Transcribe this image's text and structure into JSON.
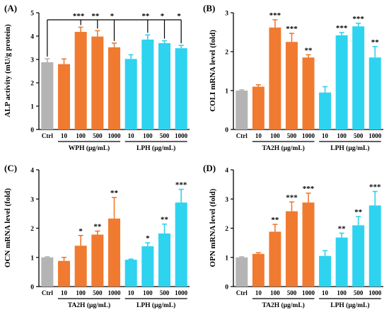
{
  "colors": {
    "ctrl": "#b4b4b4",
    "orange": "#f07a30",
    "cyan": "#2ed3f0",
    "black": "#000000"
  },
  "chart_data": [
    {
      "type": "bar",
      "panel": "(A)",
      "ylabel": "ALP activity (mU/g protein)",
      "ylim": [
        0,
        5
      ],
      "yticks": [
        0,
        1,
        2,
        3,
        4,
        5
      ],
      "categories": [
        "Ctrl",
        "10",
        "100",
        "500",
        "1000",
        "10",
        "100",
        "500",
        "1000"
      ],
      "values": [
        2.88,
        2.8,
        4.18,
        3.98,
        3.52,
        3.02,
        3.85,
        3.7,
        3.48
      ],
      "errors": [
        0.15,
        0.22,
        0.2,
        0.25,
        0.18,
        0.18,
        0.2,
        0.1,
        0.12
      ],
      "significance": [
        "",
        "",
        "***",
        "**",
        "*",
        "",
        "**",
        "*",
        "*"
      ],
      "groups": [
        {
          "label": "WPH (μg/mL)",
          "from": 1,
          "to": 4
        },
        {
          "label": "LPH (μg/mL)",
          "from": 5,
          "to": 8
        }
      ],
      "bracket": true
    },
    {
      "type": "bar",
      "panel": "(B)",
      "ylabel": "COLI mRNA level (fold)",
      "ylim": [
        0,
        3
      ],
      "yticks": [
        0,
        1,
        2,
        3
      ],
      "categories": [
        "Ctrl",
        "10",
        "100",
        "500",
        "1000",
        "10",
        "100",
        "500",
        "1000"
      ],
      "values": [
        1.0,
        1.1,
        2.62,
        2.25,
        1.85,
        0.95,
        2.42,
        2.65,
        1.85
      ],
      "errors": [
        0.02,
        0.05,
        0.2,
        0.22,
        0.07,
        0.15,
        0.07,
        0.08,
        0.28
      ],
      "significance": [
        "",
        "",
        "***",
        "***",
        "**",
        "",
        "***",
        "***",
        "**"
      ],
      "groups": [
        {
          "label": "TA2H (μg/mL)",
          "from": 1,
          "to": 4
        },
        {
          "label": "LPH (μg/mL)",
          "from": 5,
          "to": 8
        }
      ],
      "bracket": false
    },
    {
      "type": "bar",
      "panel": "(C)",
      "ylabel": "OCN mRNA level (fold)",
      "ylim": [
        0,
        4
      ],
      "yticks": [
        0,
        1,
        2,
        3,
        4
      ],
      "categories": [
        "Ctrl",
        "10",
        "100",
        "500",
        "1000",
        "10",
        "100",
        "500",
        "1000"
      ],
      "values": [
        1.0,
        0.88,
        1.4,
        1.78,
        2.33,
        0.92,
        1.38,
        1.82,
        2.88
      ],
      "errors": [
        0.02,
        0.12,
        0.35,
        0.12,
        0.72,
        0.02,
        0.12,
        0.32,
        0.45
      ],
      "significance": [
        "",
        "",
        "*",
        "**",
        "**",
        "",
        "*",
        "**",
        "***"
      ],
      "groups": [
        {
          "label": "TA2H (μg/mL)",
          "from": 1,
          "to": 4
        },
        {
          "label": "LPH (μg/mL)",
          "from": 5,
          "to": 8
        }
      ],
      "bracket": false
    },
    {
      "type": "bar",
      "panel": "(D)",
      "ylabel": "OPN mRNA level (fold)",
      "ylim": [
        0,
        4
      ],
      "yticks": [
        0,
        1,
        2,
        3,
        4
      ],
      "categories": [
        "Ctrl",
        "10",
        "100",
        "500",
        "1000",
        "10",
        "100",
        "500",
        "1000"
      ],
      "values": [
        1.0,
        1.12,
        1.88,
        2.58,
        2.88,
        1.05,
        1.68,
        2.1,
        2.78
      ],
      "errors": [
        0.02,
        0.04,
        0.25,
        0.32,
        0.32,
        0.18,
        0.15,
        0.3,
        0.48
      ],
      "significance": [
        "",
        "",
        "**",
        "***",
        "***",
        "",
        "**",
        "**",
        "***"
      ],
      "groups": [
        {
          "label": "TA2H (μg/mL)",
          "from": 1,
          "to": 4
        },
        {
          "label": "LPH (μg/mL)",
          "from": 5,
          "to": 8
        }
      ],
      "bracket": false
    }
  ]
}
